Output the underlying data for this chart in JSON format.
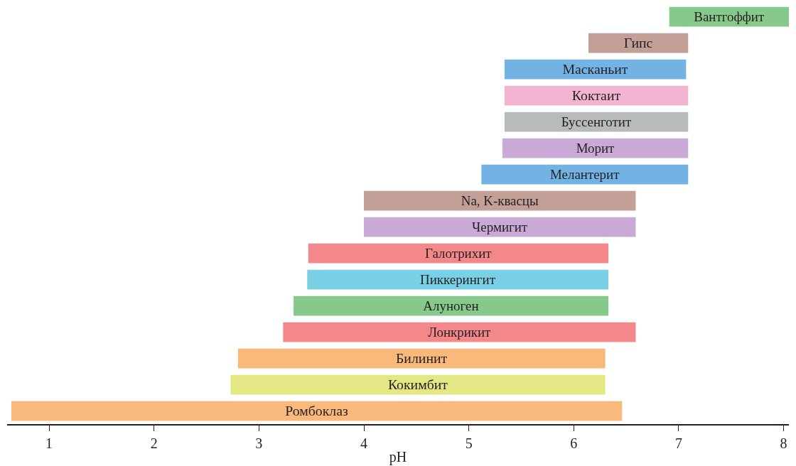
{
  "chart_data": {
    "type": "bar",
    "orientation": "horizontal",
    "xlabel": "pH",
    "categories": [
      "Вантгоффит",
      "Гипс",
      "Масканьит",
      "Коктаит",
      "Буссенготит",
      "Морит",
      "Мелантерит",
      "Na, K-квасцы",
      "Чермигит",
      "Галотрихит",
      "Пиккерингит",
      "Алуноген",
      "Лонкрикит",
      "Билинит",
      "Кокимбит",
      "Ромбоклаз"
    ],
    "base": [
      6.91,
      6.14,
      5.34,
      5.34,
      5.34,
      5.32,
      5.12,
      4.0,
      4.0,
      3.47,
      3.46,
      3.33,
      3.23,
      2.8,
      2.73,
      0.64
    ],
    "values": [
      1.14,
      0.95,
      1.73,
      1.75,
      1.75,
      1.77,
      1.97,
      2.59,
      2.59,
      2.86,
      2.87,
      3.0,
      3.36,
      3.5,
      3.57,
      5.82
    ],
    "colors": [
      "#86c98a",
      "#c3a097",
      "#72b3e3",
      "#f3b4d2",
      "#b8bbbc",
      "#c9a9d6",
      "#72b3e3",
      "#c3a097",
      "#c9a9d6",
      "#f3878a",
      "#79d0e4",
      "#86c98a",
      "#f3878a",
      "#f9b97a",
      "#e3e784",
      "#f9b97a"
    ],
    "xlim": [
      0.6,
      8.05
    ],
    "xticks": [
      1,
      2,
      3,
      4,
      5,
      6,
      7,
      8
    ],
    "tick_labels": "x"
  }
}
